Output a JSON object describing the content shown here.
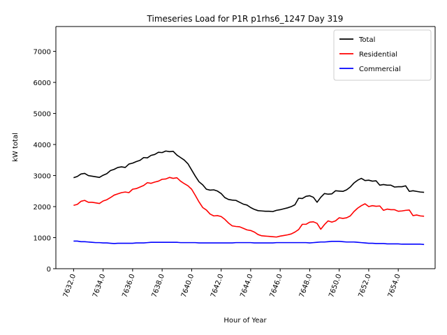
{
  "chart_data": {
    "type": "line",
    "title": "Timeseries Load for P1R p1rhs6_1247  Day 319",
    "xlabel": "Hour of Year",
    "ylabel": "kW total",
    "xlim": [
      7630.8,
      7656.5
    ],
    "ylim": [
      0,
      7800
    ],
    "xticks": [
      7632,
      7634,
      7636,
      7638,
      7640,
      7642,
      7644,
      7646,
      7648,
      7650,
      7652,
      7654
    ],
    "xtick_labels": [
      "7632.0",
      "7634.0",
      "7636.0",
      "7638.0",
      "7640.0",
      "7642.0",
      "7644.0",
      "7646.0",
      "7648.0",
      "7650.0",
      "7652.0",
      "7654.0"
    ],
    "yticks": [
      0,
      1000,
      2000,
      3000,
      4000,
      5000,
      6000,
      7000
    ],
    "ytick_labels": [
      "0",
      "1000",
      "2000",
      "3000",
      "4000",
      "5000",
      "6000",
      "7000"
    ],
    "legend_position": "top-right",
    "grid": false,
    "x": [
      7632.0,
      7632.25,
      7632.5,
      7632.75,
      7633.0,
      7633.25,
      7633.5,
      7633.75,
      7634.0,
      7634.25,
      7634.5,
      7634.75,
      7635.0,
      7635.25,
      7635.5,
      7635.75,
      7636.0,
      7636.25,
      7636.5,
      7636.75,
      7637.0,
      7637.25,
      7637.5,
      7637.75,
      7638.0,
      7638.25,
      7638.5,
      7638.75,
      7639.0,
      7639.25,
      7639.5,
      7639.75,
      7640.0,
      7640.25,
      7640.5,
      7640.75,
      7641.0,
      7641.25,
      7641.5,
      7641.75,
      7642.0,
      7642.25,
      7642.5,
      7642.75,
      7643.0,
      7643.25,
      7643.5,
      7643.75,
      7644.0,
      7644.25,
      7644.5,
      7644.75,
      7645.0,
      7645.25,
      7645.5,
      7645.75,
      7646.0,
      7646.25,
      7646.5,
      7646.75,
      7647.0,
      7647.25,
      7647.5,
      7647.75,
      7648.0,
      7648.25,
      7648.5,
      7648.75,
      7649.0,
      7649.25,
      7649.5,
      7649.75,
      7650.0,
      7650.25,
      7650.5,
      7650.75,
      7651.0,
      7651.25,
      7651.5,
      7651.75,
      7652.0,
      7652.25,
      7652.5,
      7652.75,
      7653.0,
      7653.25,
      7653.5,
      7653.75,
      7654.0,
      7654.25,
      7654.5,
      7654.75,
      7655.0,
      7655.25,
      7655.5,
      7655.75
    ],
    "series": [
      {
        "name": "Total",
        "color": "#000000",
        "values": [
          2930,
          2970,
          3050,
          3070,
          3000,
          2980,
          2960,
          2940,
          3010,
          3060,
          3160,
          3200,
          3260,
          3280,
          3260,
          3370,
          3400,
          3450,
          3490,
          3580,
          3570,
          3650,
          3680,
          3750,
          3740,
          3790,
          3770,
          3780,
          3660,
          3580,
          3500,
          3380,
          3180,
          2980,
          2800,
          2700,
          2560,
          2530,
          2540,
          2500,
          2420,
          2290,
          2230,
          2210,
          2200,
          2140,
          2080,
          2050,
          1970,
          1910,
          1870,
          1860,
          1850,
          1850,
          1840,
          1880,
          1900,
          1930,
          1960,
          2000,
          2060,
          2270,
          2260,
          2330,
          2350,
          2300,
          2140,
          2300,
          2420,
          2400,
          2410,
          2510,
          2500,
          2490,
          2540,
          2630,
          2760,
          2850,
          2910,
          2840,
          2850,
          2820,
          2830,
          2690,
          2710,
          2690,
          2690,
          2630,
          2640,
          2640,
          2670,
          2490,
          2510,
          2490,
          2470,
          2460
        ]
      },
      {
        "name": "Residential",
        "color": "#ff0000",
        "values": [
          2040,
          2070,
          2170,
          2200,
          2140,
          2140,
          2120,
          2100,
          2180,
          2220,
          2290,
          2370,
          2410,
          2450,
          2470,
          2450,
          2560,
          2580,
          2630,
          2680,
          2770,
          2750,
          2790,
          2820,
          2880,
          2890,
          2940,
          2910,
          2930,
          2820,
          2740,
          2670,
          2560,
          2360,
          2150,
          1970,
          1890,
          1760,
          1700,
          1710,
          1680,
          1590,
          1470,
          1380,
          1360,
          1350,
          1300,
          1250,
          1230,
          1180,
          1100,
          1060,
          1050,
          1040,
          1030,
          1020,
          1050,
          1070,
          1090,
          1120,
          1180,
          1260,
          1430,
          1430,
          1500,
          1510,
          1460,
          1270,
          1420,
          1540,
          1500,
          1540,
          1640,
          1620,
          1640,
          1700,
          1840,
          1950,
          2030,
          2090,
          2000,
          2030,
          2010,
          2020,
          1880,
          1920,
          1900,
          1900,
          1850,
          1860,
          1880,
          1890,
          1710,
          1730,
          1700,
          1690
        ]
      },
      {
        "name": "Commercial",
        "color": "#0000ff",
        "values": [
          890,
          890,
          870,
          870,
          860,
          850,
          840,
          840,
          830,
          830,
          820,
          810,
          820,
          820,
          820,
          820,
          820,
          830,
          830,
          830,
          840,
          850,
          850,
          850,
          850,
          850,
          850,
          850,
          850,
          840,
          840,
          840,
          840,
          840,
          830,
          830,
          830,
          830,
          830,
          830,
          830,
          830,
          830,
          830,
          840,
          840,
          840,
          840,
          840,
          830,
          830,
          830,
          830,
          830,
          830,
          840,
          840,
          840,
          840,
          840,
          840,
          840,
          840,
          840,
          830,
          840,
          850,
          860,
          860,
          870,
          880,
          880,
          880,
          870,
          860,
          860,
          860,
          850,
          840,
          830,
          820,
          820,
          810,
          810,
          810,
          800,
          800,
          800,
          800,
          790,
          790,
          790,
          790,
          790,
          790,
          780
        ]
      }
    ]
  }
}
